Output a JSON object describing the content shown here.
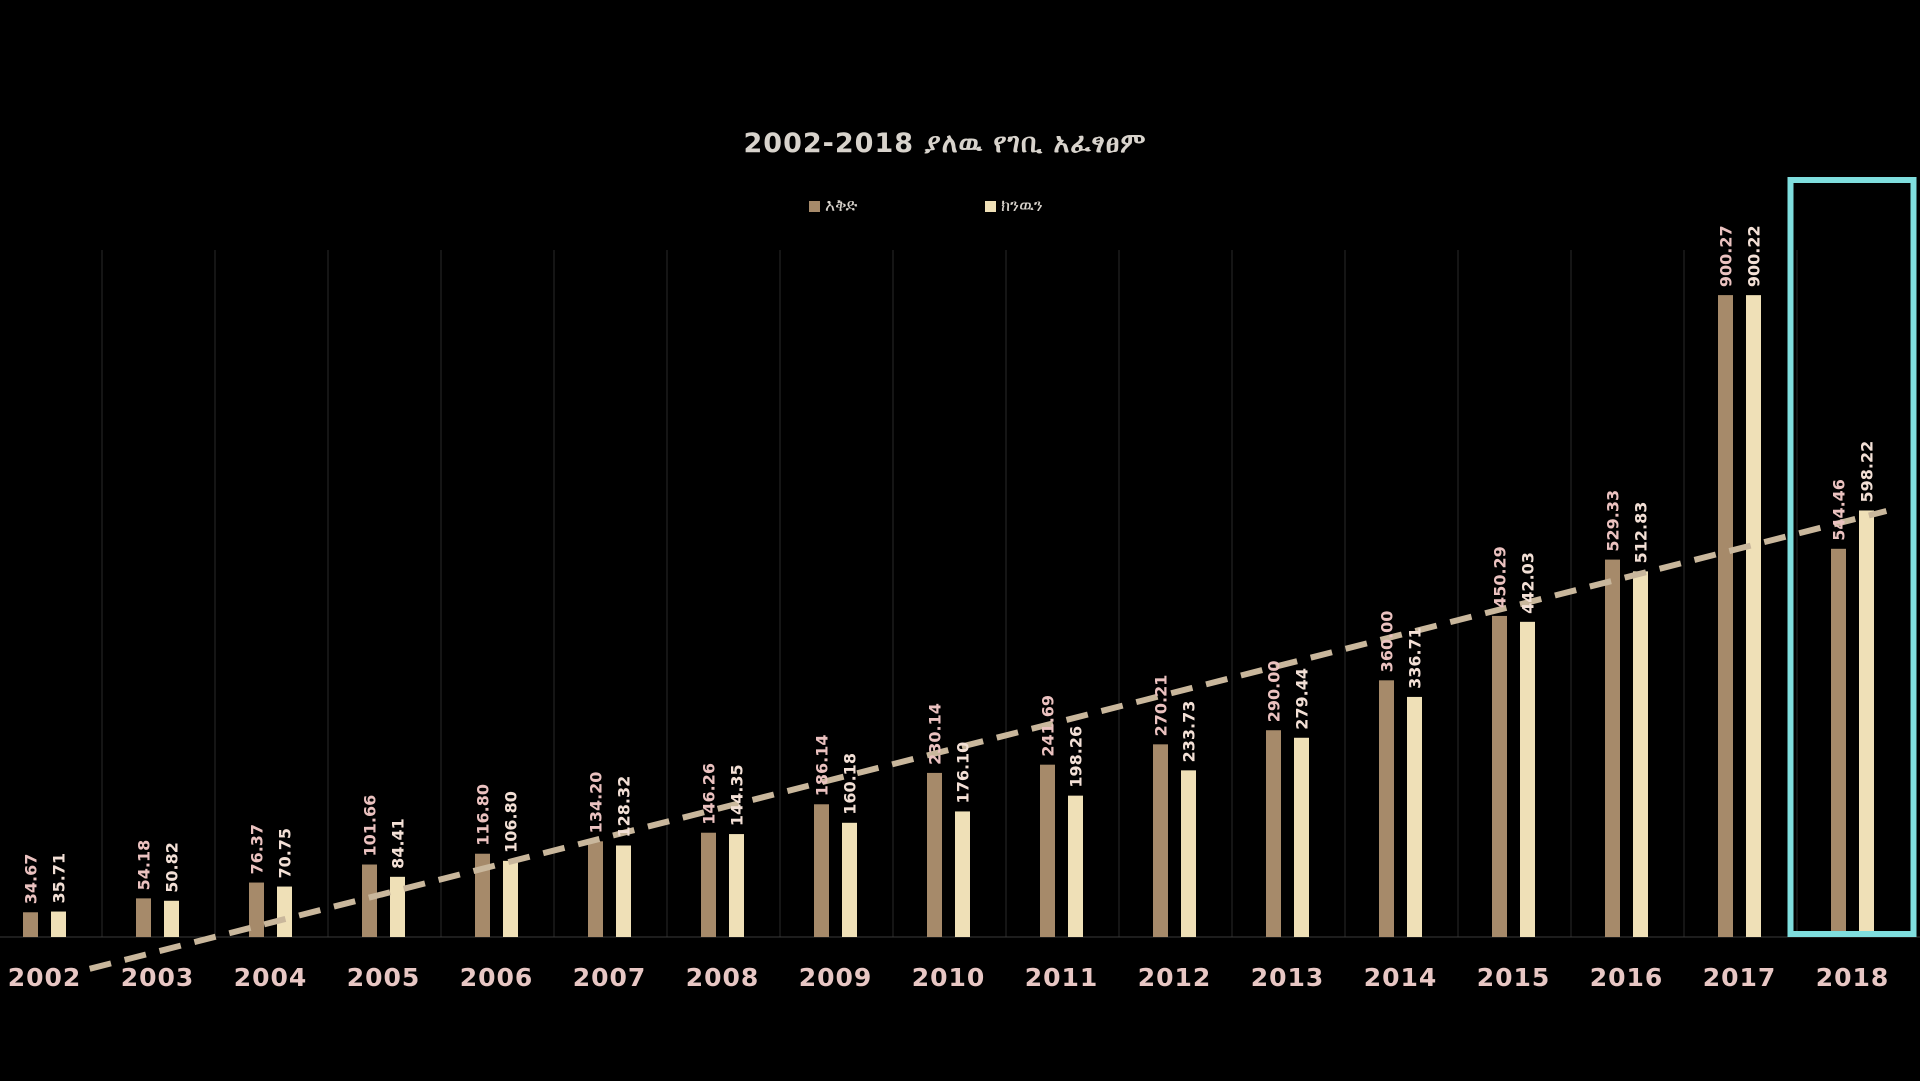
{
  "chart_data": {
    "type": "bar",
    "title": "2002-2018 ያለዉ የገቢ አፈፃፀም",
    "categories": [
      "2002",
      "2003",
      "2004",
      "2005",
      "2006",
      "2007",
      "2008",
      "2009",
      "2010",
      "2011",
      "2012",
      "2013",
      "2014",
      "2015",
      "2016",
      "2017",
      "2018"
    ],
    "series": [
      {
        "name": "እቅድ",
        "color": "#a68a6a",
        "values": [
          34.67,
          54.18,
          76.37,
          101.66,
          116.8,
          134.2,
          146.26,
          186.14,
          230.14,
          241.69,
          270.21,
          290.0,
          360.0,
          450.29,
          529.33,
          900.27,
          544.46
        ],
        "labels": [
          "34.67",
          "54.18",
          "76.37",
          "101.66",
          "116.80",
          "134.20",
          "146.26",
          "186.14",
          "230.14",
          "241.69",
          "270.21",
          "290.00",
          "360.00",
          "450.29",
          "529.33",
          "900.27",
          "544.46"
        ]
      },
      {
        "name": "ክንዉን",
        "color": "#efe0b7",
        "values": [
          35.71,
          50.82,
          70.75,
          84.41,
          106.8,
          128.32,
          144.35,
          160.18,
          176.1,
          198.26,
          233.73,
          279.44,
          336.71,
          442.03,
          512.83,
          900.22,
          598.22
        ],
        "labels": [
          "35.71",
          "50.82",
          "70.75",
          "84.41",
          "106.80",
          "128.32",
          "144.35",
          "160.18",
          "176.10",
          "198.26",
          "233.73",
          "279.44",
          "336.71",
          "442.03",
          "512.83",
          "900.22",
          "598.22"
        ]
      }
    ],
    "trendline": {
      "style": "dashed",
      "color": "#c9b79c",
      "series": "ክንዉን"
    },
    "highlight": {
      "category": "2018",
      "color": "#7fdede"
    },
    "ylim": [
      0,
      1000
    ],
    "grid": "vertical-only",
    "legend_position": "top-center",
    "xlabel": "",
    "ylabel": ""
  }
}
